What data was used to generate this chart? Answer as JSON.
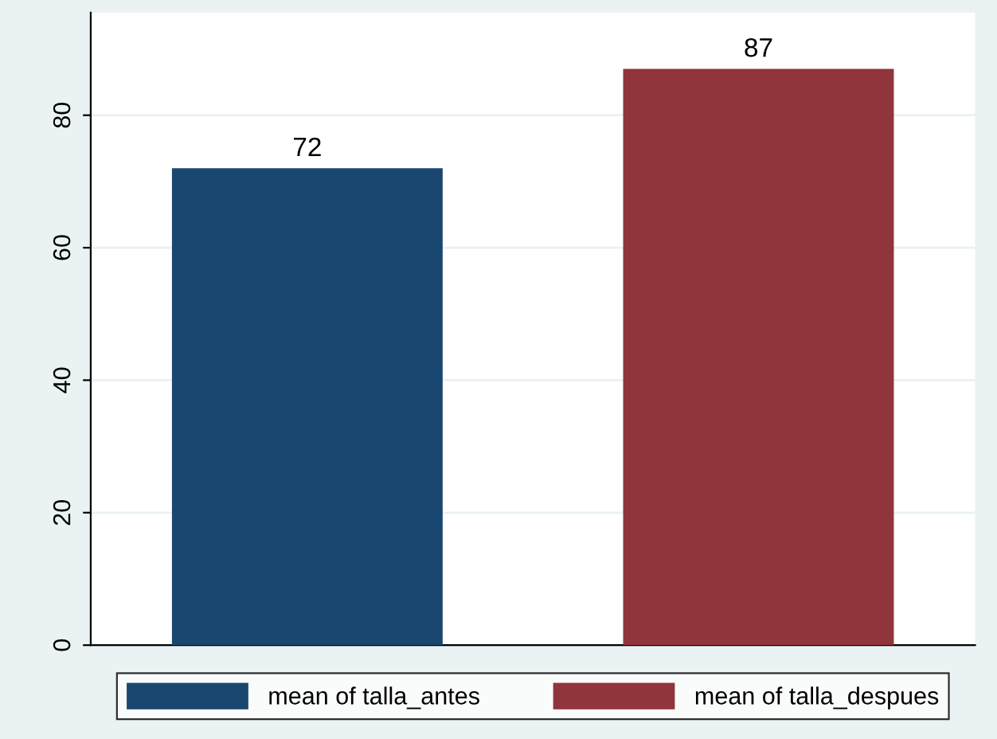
{
  "chart_data": {
    "type": "bar",
    "categories": [
      null
    ],
    "series": [
      {
        "name": "mean of talla_antes",
        "color": "#1a476f",
        "values": [
          72
        ]
      },
      {
        "name": "mean of talla_despues",
        "color": "#90353b",
        "values": [
          87
        ]
      }
    ],
    "ylim": [
      0,
      95.5
    ],
    "yticks": [
      0,
      20,
      40,
      60,
      80
    ],
    "grid": "y",
    "legend": "bottom",
    "data_labels": true
  }
}
